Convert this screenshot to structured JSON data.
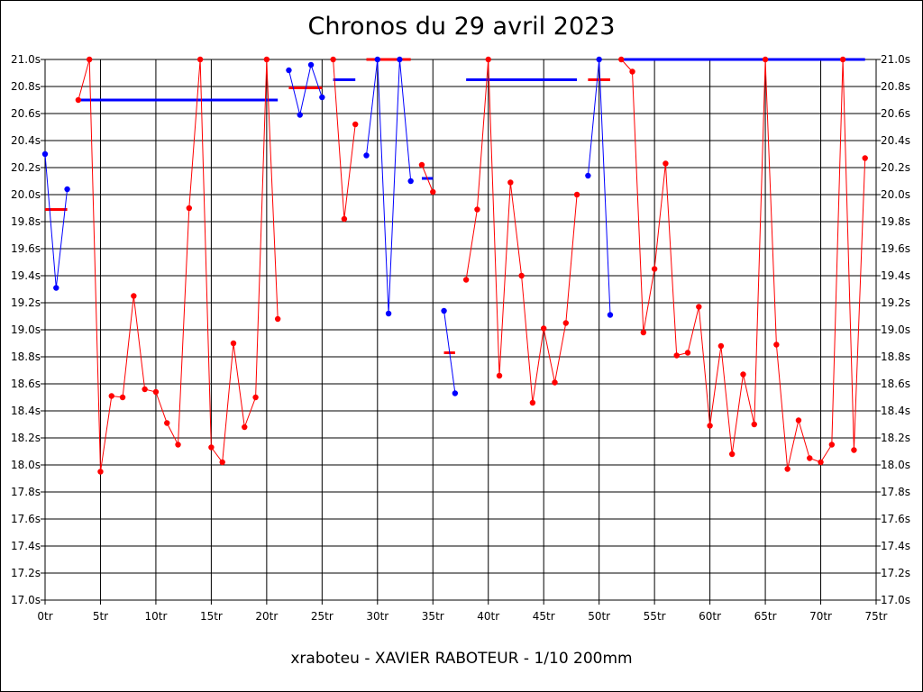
{
  "title": "Chronos du 29 avril 2023",
  "footer": "xraboteu - XAVIER RABOTEUR - 1/10 200mm",
  "chart_data": {
    "type": "line",
    "title": "Chronos du 29 avril 2023",
    "xlabel": "",
    "ylabel": "",
    "xlim": [
      0,
      75
    ],
    "ylim": [
      17.0,
      21.0
    ],
    "grid": true,
    "x_ticks": [
      "0tr",
      "5tr",
      "10tr",
      "15tr",
      "20tr",
      "25tr",
      "30tr",
      "35tr",
      "40tr",
      "45tr",
      "50tr",
      "55tr",
      "60tr",
      "65tr",
      "70tr",
      "75tr"
    ],
    "y_ticks": [
      "17.0s",
      "17.2s",
      "17.4s",
      "17.6s",
      "17.8s",
      "18.0s",
      "18.2s",
      "18.4s",
      "18.6s",
      "18.8s",
      "19.0s",
      "19.2s",
      "19.4s",
      "19.6s",
      "19.8s",
      "20.0s",
      "20.2s",
      "20.4s",
      "20.6s",
      "20.8s",
      "21.0s"
    ],
    "colors": {
      "red": "#ff0000",
      "blue": "#0000ff"
    },
    "segments": [
      {
        "color": "blue",
        "points": [
          [
            0,
            20.3
          ],
          [
            1,
            19.31
          ],
          [
            2,
            20.04
          ]
        ]
      },
      {
        "color": "red",
        "points": [
          [
            3,
            20.7
          ],
          [
            4,
            21.0
          ],
          [
            4.95,
            18.1
          ],
          [
            5,
            17.95
          ],
          [
            6,
            18.51
          ],
          [
            7,
            18.5
          ],
          [
            8,
            19.25
          ],
          [
            9,
            18.56
          ],
          [
            10,
            18.54
          ],
          [
            11,
            18.31
          ],
          [
            12,
            18.15
          ],
          [
            13,
            19.9
          ],
          [
            14,
            21.0
          ],
          [
            14.95,
            18.25
          ],
          [
            15,
            18.13
          ],
          [
            16,
            18.02
          ],
          [
            17,
            18.9
          ],
          [
            18,
            18.28
          ],
          [
            19,
            18.5
          ],
          [
            20,
            21.0
          ],
          [
            20.05,
            20.88
          ],
          [
            21,
            19.08
          ]
        ]
      },
      {
        "color": "blue",
        "points": [
          [
            22,
            20.92
          ],
          [
            23,
            20.59
          ],
          [
            24,
            20.96
          ],
          [
            25,
            20.72
          ]
        ]
      },
      {
        "color": "red",
        "points": [
          [
            26,
            21.0
          ],
          [
            27,
            19.82
          ],
          [
            28,
            20.52
          ]
        ]
      },
      {
        "color": "blue",
        "points": [
          [
            29,
            20.29
          ],
          [
            30,
            21.0
          ],
          [
            31,
            19.12
          ],
          [
            32,
            21.0
          ],
          [
            33,
            20.1
          ]
        ]
      },
      {
        "color": "red",
        "points": [
          [
            34,
            20.22
          ],
          [
            35,
            20.02
          ]
        ]
      },
      {
        "color": "blue",
        "points": [
          [
            36,
            19.14
          ],
          [
            37,
            18.53
          ]
        ]
      },
      {
        "color": "red",
        "points": [
          [
            38,
            19.37
          ],
          [
            39,
            19.89
          ],
          [
            40,
            21.0
          ],
          [
            41,
            18.66
          ],
          [
            42,
            20.09
          ],
          [
            43,
            19.4
          ],
          [
            44,
            18.46
          ],
          [
            45,
            19.01
          ],
          [
            46,
            18.61
          ],
          [
            47,
            19.05
          ],
          [
            48,
            20.0
          ]
        ]
      },
      {
        "color": "blue",
        "points": [
          [
            49,
            20.14
          ],
          [
            50,
            21.0
          ],
          [
            51,
            19.11
          ]
        ]
      },
      {
        "color": "red",
        "points": [
          [
            52,
            21.0
          ],
          [
            53,
            20.91
          ],
          [
            54,
            18.98
          ],
          [
            55,
            19.45
          ],
          [
            56,
            20.23
          ],
          [
            57,
            18.81
          ],
          [
            58,
            18.83
          ],
          [
            59,
            19.17
          ],
          [
            60,
            18.29
          ],
          [
            61,
            18.88
          ],
          [
            62,
            18.08
          ],
          [
            63,
            18.67
          ],
          [
            64,
            18.3
          ],
          [
            65,
            21.0
          ],
          [
            65.05,
            20.88
          ],
          [
            66,
            18.89
          ],
          [
            67,
            17.97
          ],
          [
            68,
            18.33
          ],
          [
            69,
            18.05
          ],
          [
            70,
            18.02
          ],
          [
            71,
            18.15
          ],
          [
            72,
            21.0
          ],
          [
            73,
            18.11
          ],
          [
            74,
            20.27
          ]
        ]
      }
    ],
    "averages": [
      {
        "color": "red",
        "x": [
          0,
          2
        ],
        "y": 19.89
      },
      {
        "color": "blue",
        "x": [
          3,
          21
        ],
        "y": 20.7
      },
      {
        "color": "red",
        "x": [
          22,
          25
        ],
        "y": 20.79
      },
      {
        "color": "blue",
        "x": [
          26,
          28
        ],
        "y": 20.85
      },
      {
        "color": "red",
        "x": [
          29,
          33
        ],
        "y": 21.0
      },
      {
        "color": "blue",
        "x": [
          34,
          35
        ],
        "y": 20.12
      },
      {
        "color": "red",
        "x": [
          36,
          37
        ],
        "y": 18.83
      },
      {
        "color": "blue",
        "x": [
          38,
          48
        ],
        "y": 20.85
      },
      {
        "color": "red",
        "x": [
          49,
          51
        ],
        "y": 20.85
      },
      {
        "color": "blue",
        "x": [
          52,
          74
        ],
        "y": 21.0
      }
    ]
  }
}
